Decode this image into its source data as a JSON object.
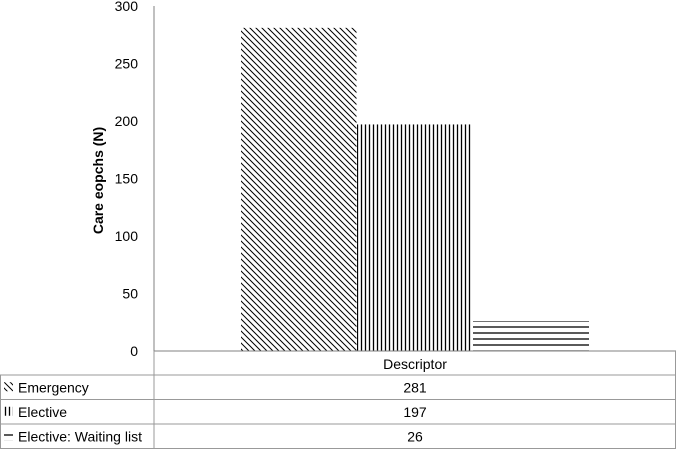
{
  "chart_data": {
    "type": "bar",
    "categories": [
      "Descriptor"
    ],
    "series": [
      {
        "name": "Emergency",
        "values": [
          281
        ],
        "pattern": "diagonal"
      },
      {
        "name": "Elective",
        "values": [
          197
        ],
        "pattern": "vertical"
      },
      {
        "name": "Elective: Waiting list",
        "values": [
          26
        ],
        "pattern": "horizontal"
      }
    ],
    "ylabel": "Care eopchs (N)",
    "ylim": [
      0,
      300
    ],
    "yticks": [
      0,
      50,
      100,
      150,
      200,
      250,
      300
    ],
    "grid": false,
    "legend": "data-table",
    "data_table": true,
    "colors": {
      "bar_stroke": "#000000",
      "axis": "#808080",
      "table_border": "#999999"
    }
  }
}
